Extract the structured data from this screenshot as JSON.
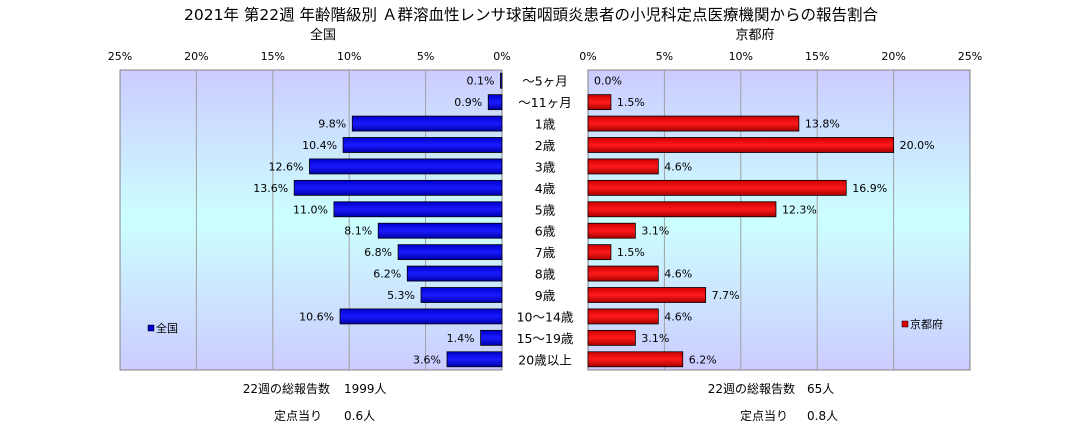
{
  "chart_data": {
    "type": "bar",
    "title": "2021年 第22週 年齢階級別 Ａ群溶血性レンサ球菌咽頭炎患者の小児科定点医療機関からの報告割合",
    "categories": [
      "～5ヶ月",
      "～11ヶ月",
      "1歳",
      "2歳",
      "3歳",
      "4歳",
      "5歳",
      "6歳",
      "7歳",
      "8歳",
      "9歳",
      "10～14歳",
      "15～19歳",
      "20歳以上"
    ],
    "left_panel": {
      "title": "全国",
      "series_name": "全国",
      "color": "#0000cc",
      "values": [
        0.1,
        0.9,
        9.8,
        10.4,
        12.6,
        13.6,
        11.0,
        8.1,
        6.8,
        6.2,
        5.3,
        10.6,
        1.4,
        3.6
      ],
      "labels": [
        "0.1%",
        "0.9%",
        "9.8%",
        "10.4%",
        "12.6%",
        "13.6%",
        "11.0%",
        "8.1%",
        "6.8%",
        "6.2%",
        "5.3%",
        "10.6%",
        "1.4%",
        "3.6%"
      ],
      "ticks": [
        "25%",
        "20%",
        "15%",
        "10%",
        "5%",
        "0%"
      ],
      "tick_values": [
        25,
        20,
        15,
        10,
        5,
        0
      ],
      "xlim": [
        0,
        25
      ],
      "legend_position": "bottom-left",
      "total_label": "22週の総報告数",
      "total_value": "1999人",
      "per_site_label": "定点当り",
      "per_site_value": "0.6人"
    },
    "right_panel": {
      "title": "京都府",
      "series_name": "京都府",
      "color": "#dd0000",
      "values": [
        0.0,
        1.5,
        13.8,
        20.0,
        4.6,
        16.9,
        12.3,
        3.1,
        1.5,
        4.6,
        7.7,
        4.6,
        3.1,
        6.2
      ],
      "labels": [
        "0.0%",
        "1.5%",
        "13.8%",
        "20.0%",
        "4.6%",
        "16.9%",
        "12.3%",
        "3.1%",
        "1.5%",
        "4.6%",
        "7.7%",
        "4.6%",
        "3.1%",
        "6.2%"
      ],
      "ticks": [
        "0%",
        "5%",
        "10%",
        "15%",
        "20%",
        "25%"
      ],
      "tick_values": [
        0,
        5,
        10,
        15,
        20,
        25
      ],
      "xlim": [
        0,
        25
      ],
      "legend_position": "bottom-right",
      "total_label": "22週の総報告数",
      "total_value": "65人",
      "per_site_label": "定点当り",
      "per_site_value": "0.8人"
    },
    "grid": true
  }
}
